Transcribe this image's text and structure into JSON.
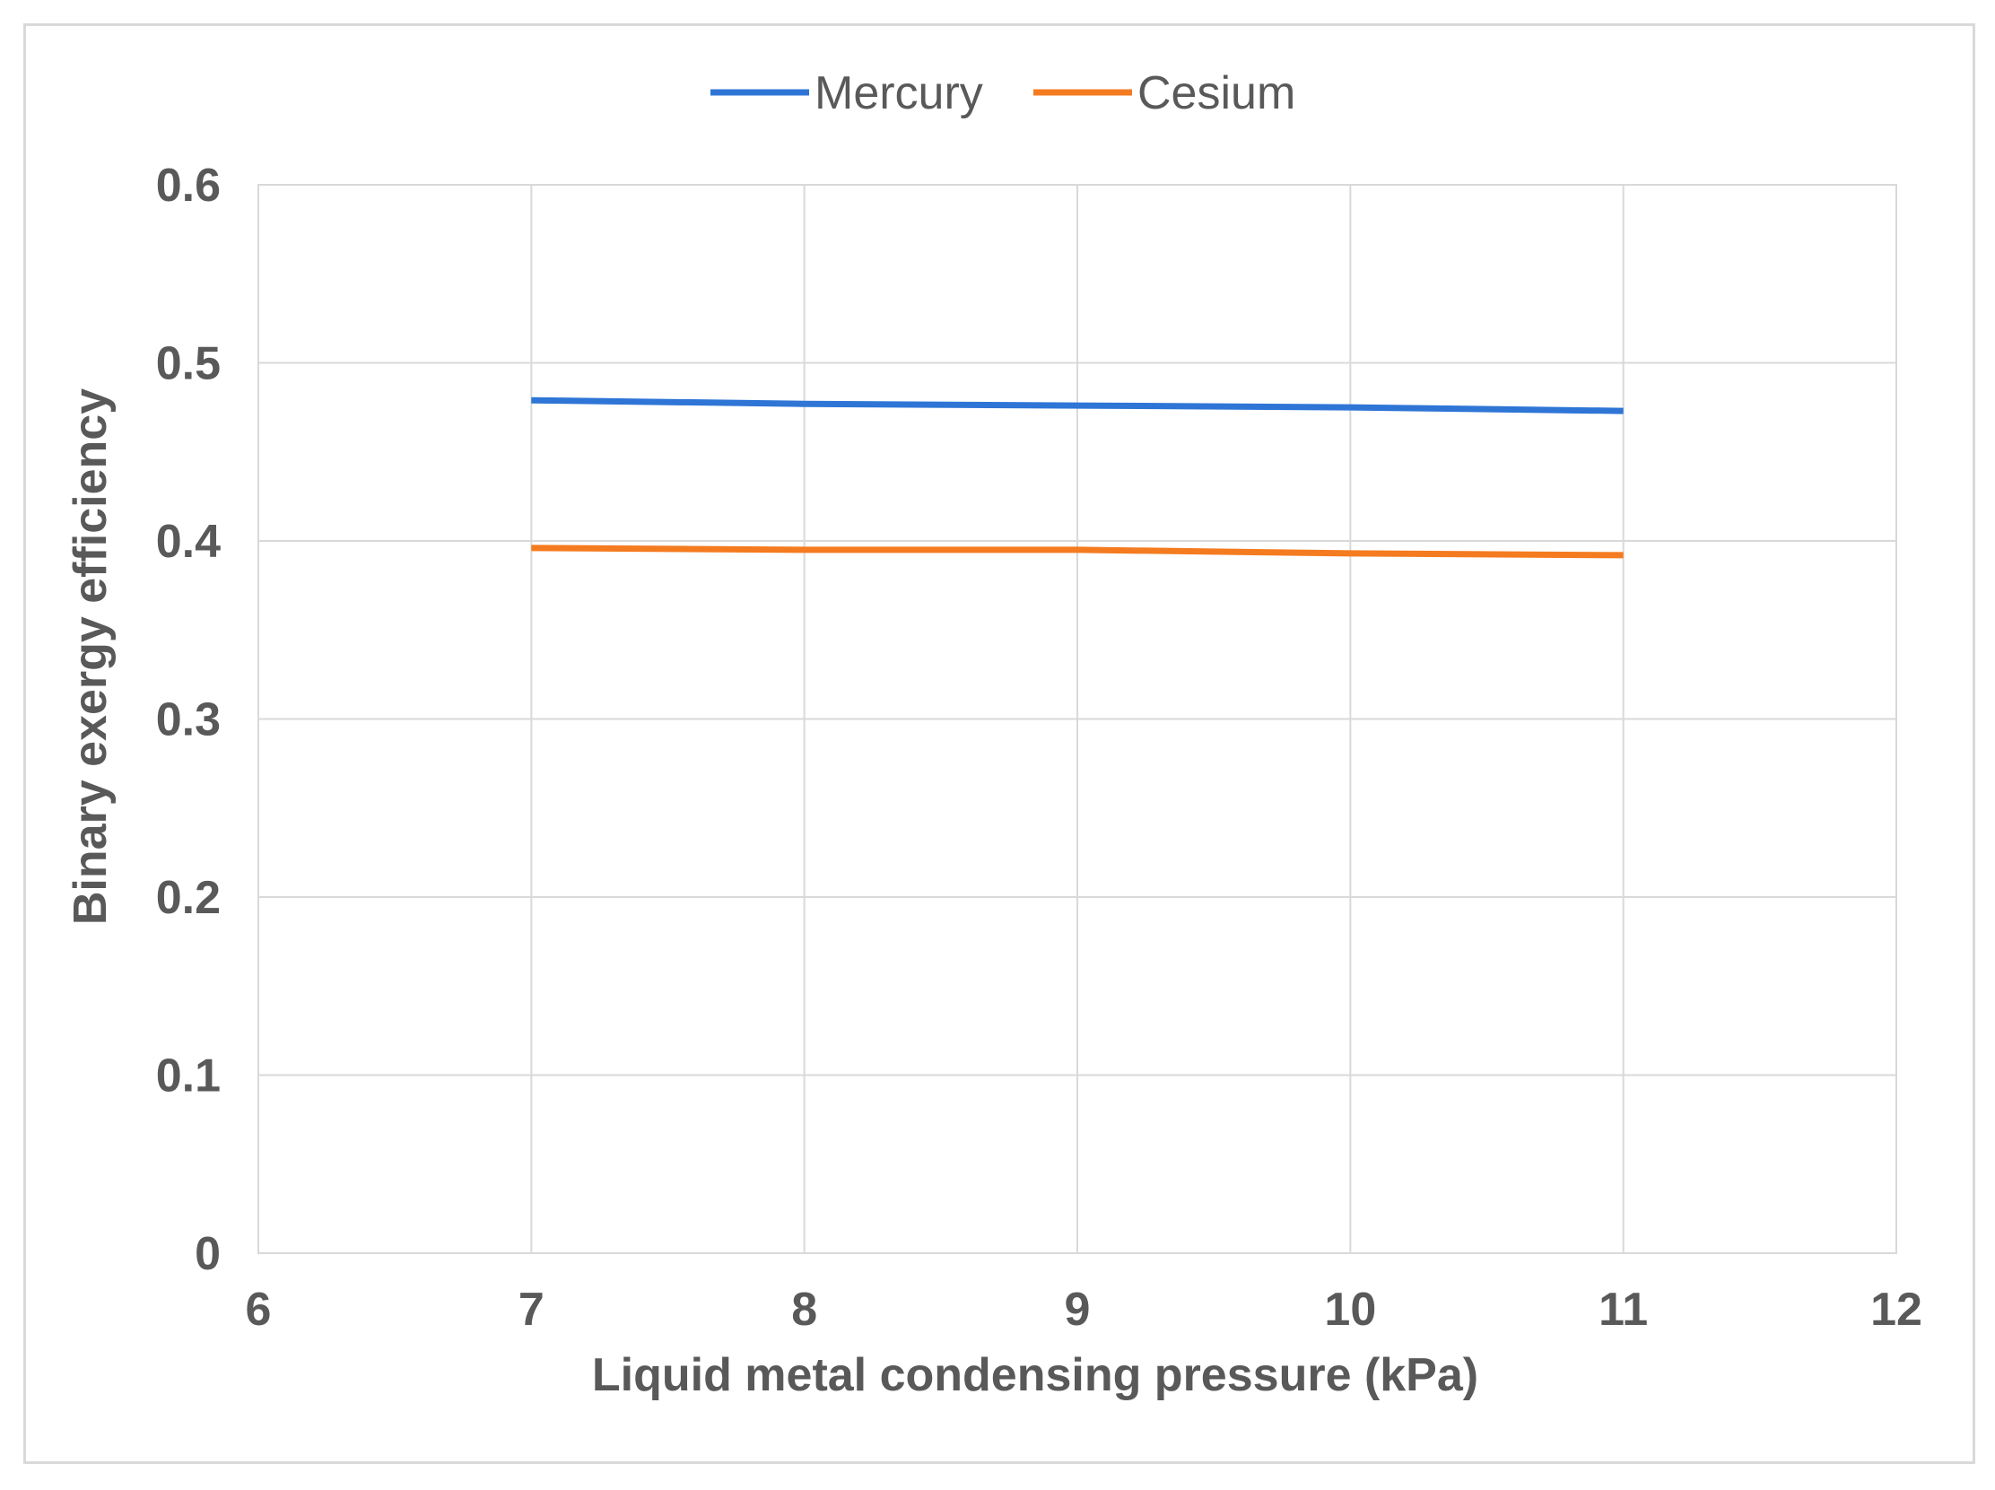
{
  "chart_data": {
    "type": "line",
    "xlabel": "Liquid metal condensing pressure (kPa)",
    "ylabel": "Binary exergy efficiency",
    "xlim": [
      6,
      12
    ],
    "ylim": [
      0,
      0.6
    ],
    "x_ticks": [
      "6",
      "7",
      "8",
      "9",
      "10",
      "11",
      "12"
    ],
    "y_ticks": [
      "0",
      "0.1",
      "0.2",
      "0.3",
      "0.4",
      "0.5",
      "0.6"
    ],
    "grid": true,
    "legend_position": "top",
    "x": [
      7,
      8,
      9,
      10,
      11
    ],
    "series": [
      {
        "name": "Mercury",
        "color": "#2e75d6",
        "values": [
          0.479,
          0.477,
          0.476,
          0.475,
          0.473
        ]
      },
      {
        "name": "Cesium",
        "color": "#f47b20",
        "values": [
          0.396,
          0.395,
          0.395,
          0.393,
          0.392
        ]
      }
    ]
  }
}
